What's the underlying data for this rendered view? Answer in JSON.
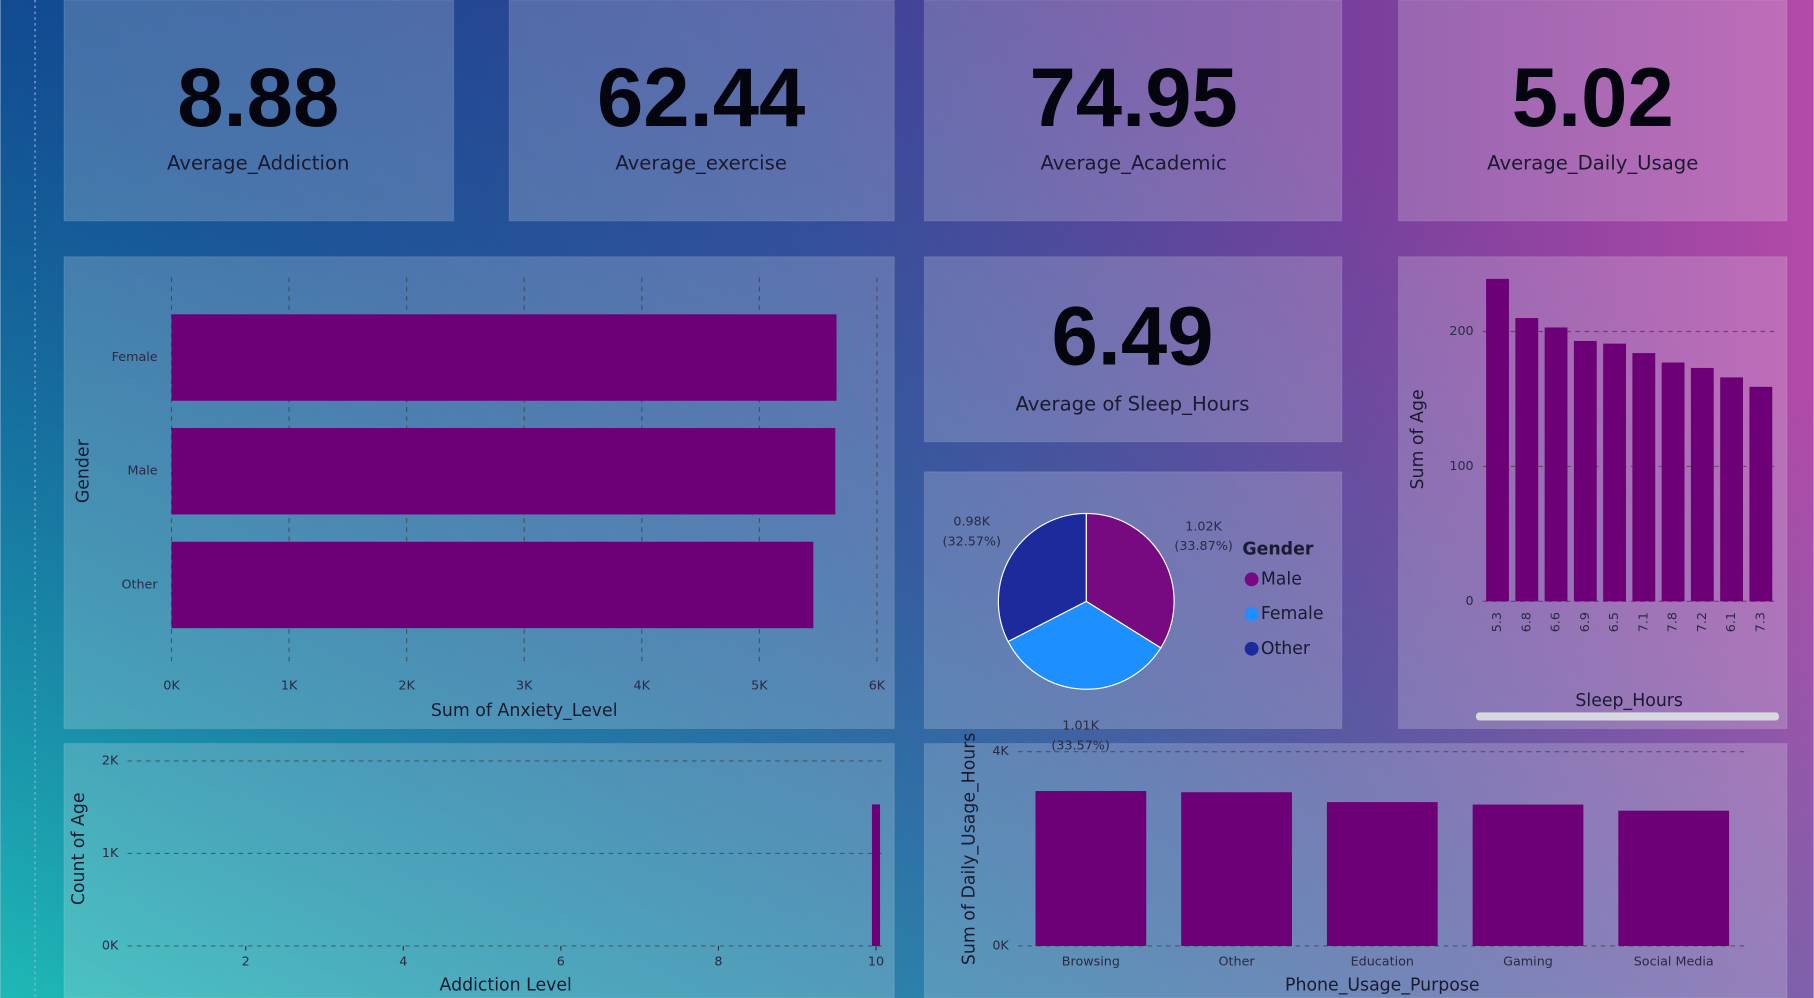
{
  "cards": [
    {
      "value": "8.88",
      "label": "Average_Addiction"
    },
    {
      "value": "62.44",
      "label": "Average_exercise"
    },
    {
      "value": "74.95",
      "label": "Average_Academic"
    },
    {
      "value": "5.02",
      "label": "Average_Daily_Usage"
    },
    {
      "value": "6.49",
      "label": "Average of Sleep_Hours"
    }
  ],
  "chart_data": [
    {
      "type": "bar",
      "orientation": "horizontal",
      "categories": [
        "Female",
        "Male",
        "Other"
      ],
      "values": [
        5656,
        5646,
        5459
      ],
      "color": "#6e0077",
      "xlabel": "Sum of Anxiety_Level",
      "ylabel": "Gender",
      "xlim": [
        0,
        6000
      ],
      "xticks": [
        {
          "value": 0,
          "label": "0K"
        },
        {
          "value": 1000,
          "label": "1K"
        },
        {
          "value": 2000,
          "label": "2K"
        },
        {
          "value": 3000,
          "label": "3K"
        },
        {
          "value": 4000,
          "label": "4K"
        },
        {
          "value": 5000,
          "label": "5K"
        },
        {
          "value": 6000,
          "label": "6K"
        }
      ],
      "grid": true
    },
    {
      "type": "pie",
      "legend_title": "Gender",
      "categories": [
        "Male",
        "Female",
        "Other"
      ],
      "values": [
        1020,
        1010,
        980
      ],
      "value_labels": [
        "1.02K",
        "1.01K",
        "0.98K"
      ],
      "percent_labels": [
        "(33.87%)",
        "(33.57%)",
        "(32.57%)"
      ],
      "colors": [
        "#770a80",
        "#1e8fff",
        "#1c2a9c"
      ],
      "legend": "right"
    },
    {
      "type": "bar",
      "categories": [
        "5.3",
        "6.8",
        "6.6",
        "6.9",
        "6.5",
        "7.1",
        "7.8",
        "7.2",
        "6.1",
        "7.3"
      ],
      "values": [
        239,
        210,
        203,
        193,
        191,
        184,
        177,
        173,
        166,
        159
      ],
      "color": "#6e0077",
      "xlabel": "Sleep_Hours",
      "ylabel": "Sum of Age",
      "ylim": [
        0,
        240
      ],
      "yticks": [
        0,
        100,
        200
      ],
      "grid": true
    },
    {
      "type": "bar",
      "x": [
        10
      ],
      "values": [
        1530
      ],
      "color": "#6e0077",
      "xlabel": "Addiction Level",
      "ylabel": "Count of Age",
      "xlim": [
        0.5,
        10.1
      ],
      "xticks": [
        2,
        4,
        6,
        8,
        10
      ],
      "ylim": [
        0,
        2100
      ],
      "yticks": [
        {
          "value": 0,
          "label": "0K"
        },
        {
          "value": 1000,
          "label": "1K"
        },
        {
          "value": 2000,
          "label": "2K"
        }
      ],
      "grid": true
    },
    {
      "type": "bar",
      "categories": [
        "Browsing",
        "Other",
        "Education",
        "Gaming",
        "Social Media"
      ],
      "values": [
        3190,
        3165,
        2962,
        2911,
        2785
      ],
      "color": "#6e0077",
      "xlabel": "Phone_Usage_Purpose",
      "ylabel": "Sum of Daily_Usage_Hours",
      "ylim": [
        0,
        4000
      ],
      "yticks": [
        {
          "value": 0,
          "label": "0K"
        },
        {
          "value": 4000,
          "label": "4K"
        }
      ],
      "grid": true
    }
  ]
}
